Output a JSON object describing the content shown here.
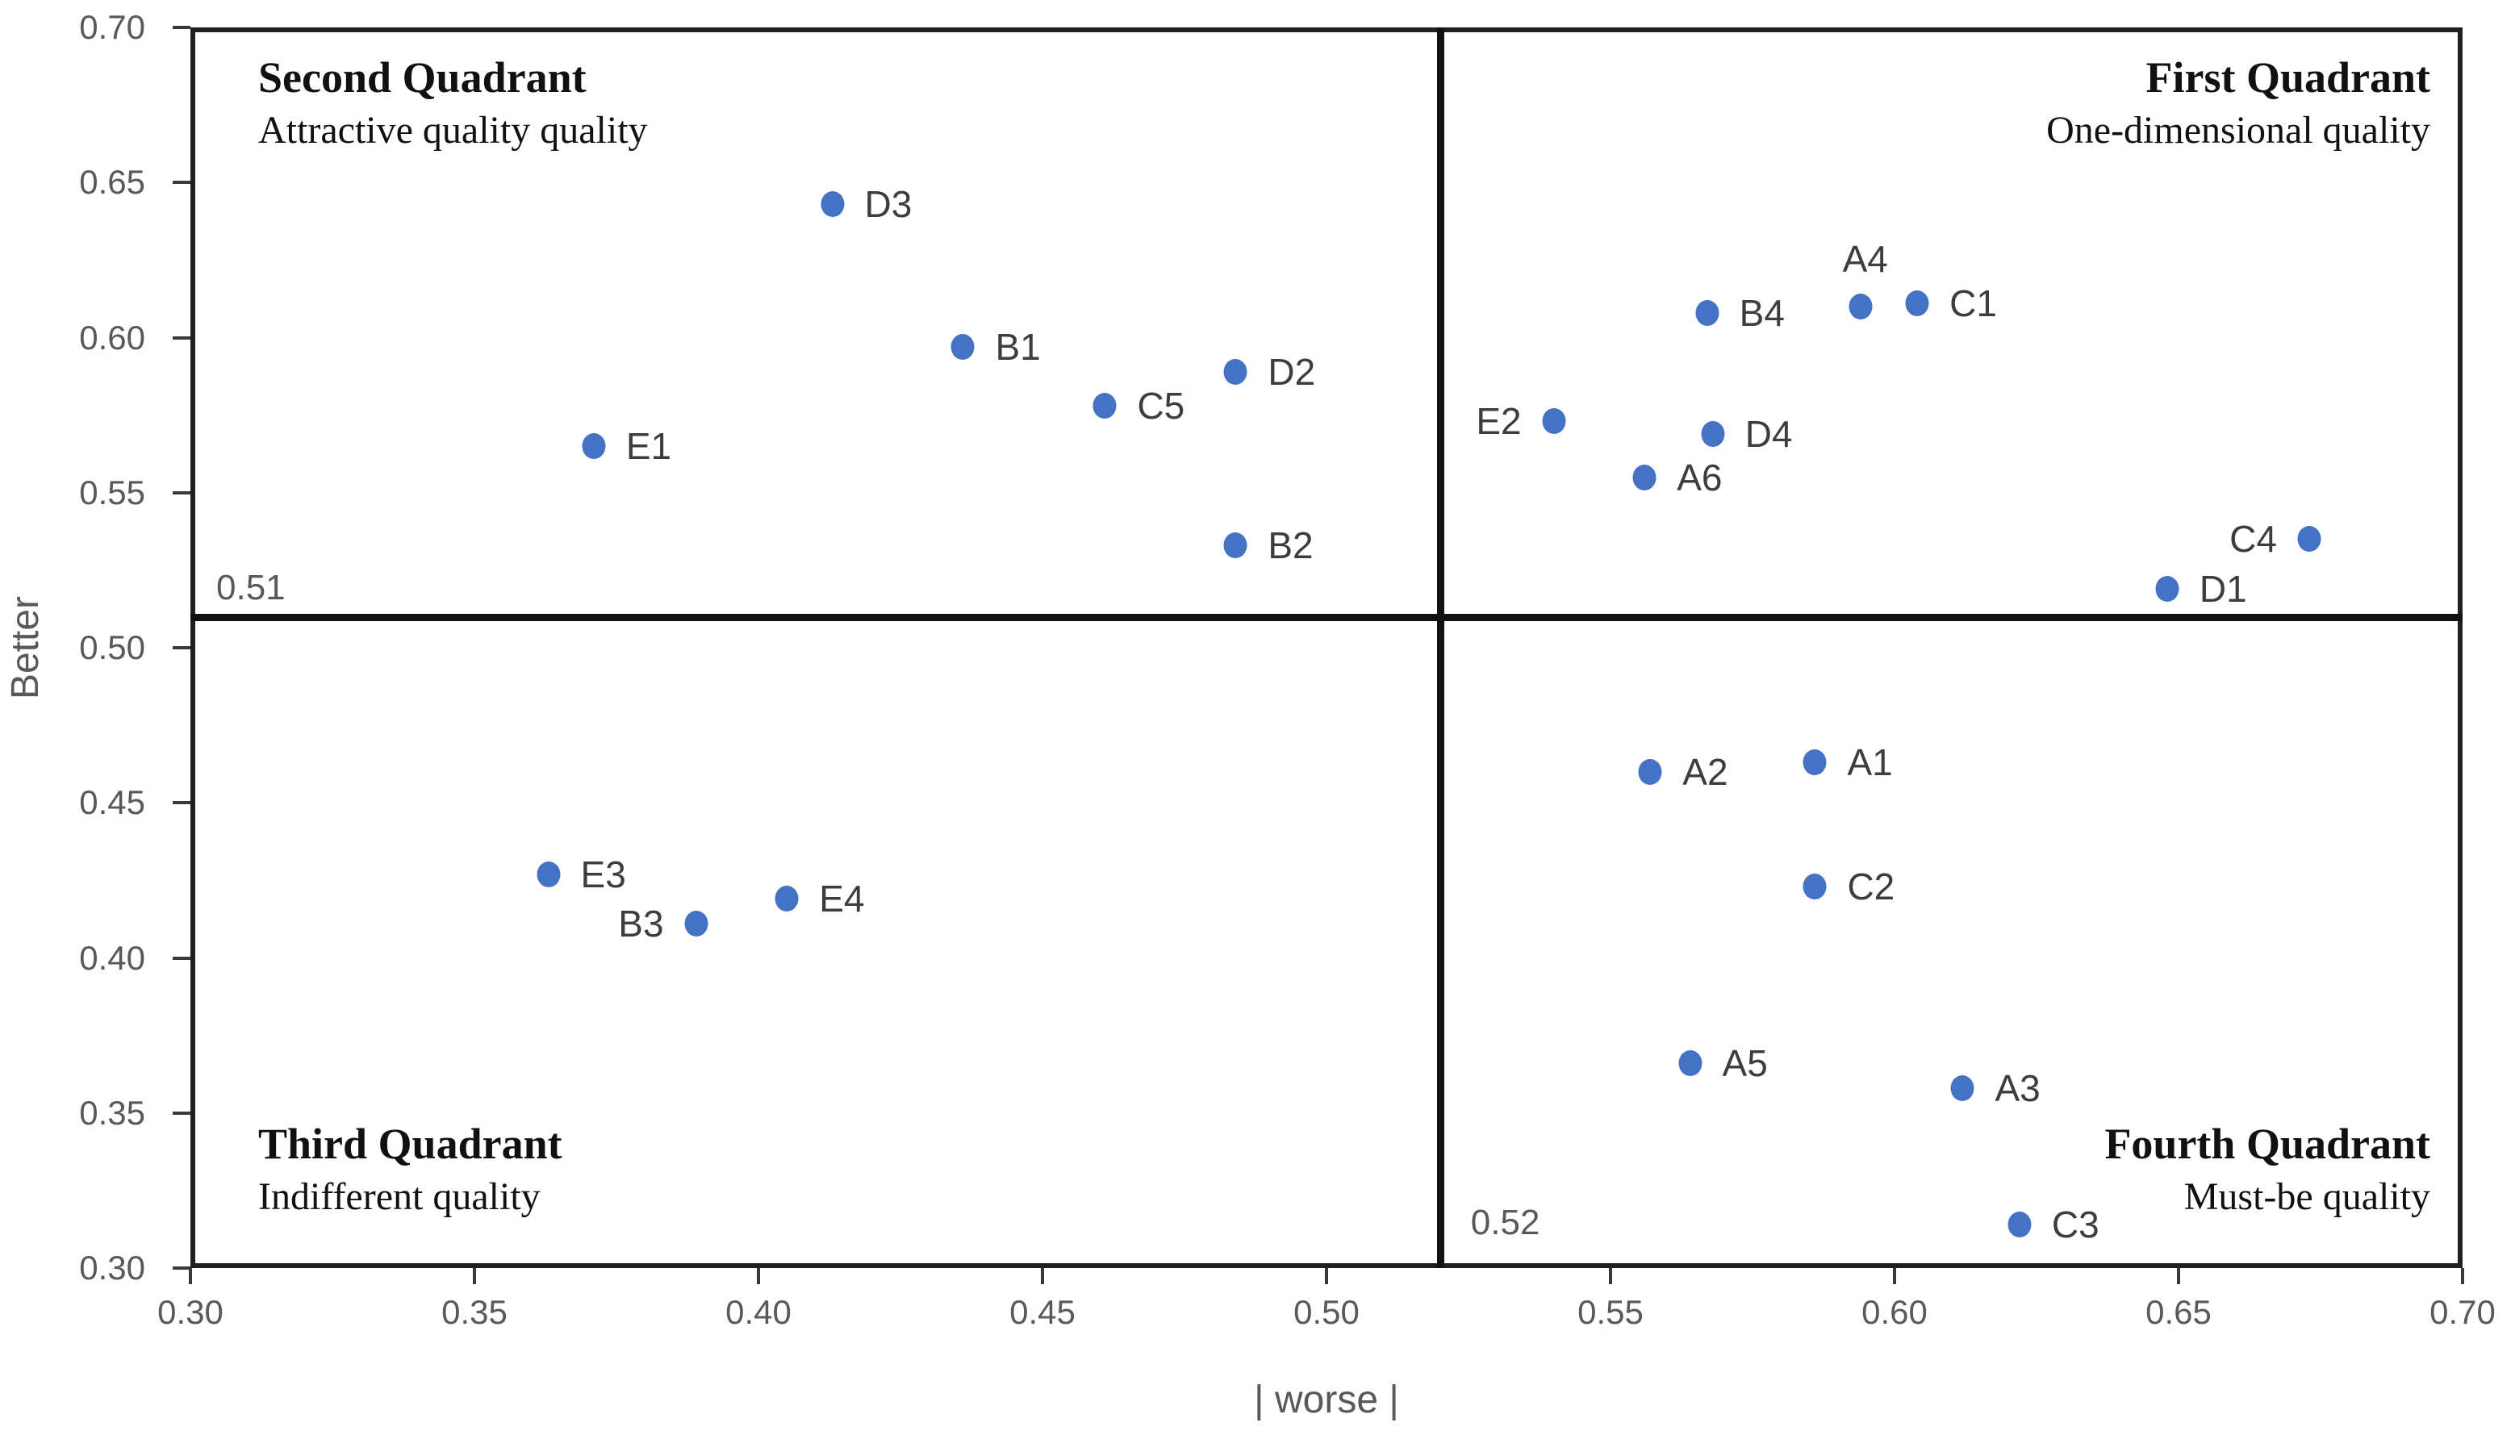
{
  "colors": {
    "dot": "#4472C4",
    "axis_text": "#595959",
    "quad_text": "#111111",
    "point_label_text": "#3d3d3d",
    "border": "#1f1f1f"
  },
  "axes": {
    "x_title": "| worse |",
    "y_title": "Better",
    "x_tick_labels": [
      "0.30",
      "0.35",
      "0.40",
      "0.45",
      "0.50",
      "0.55",
      "0.60",
      "0.65",
      "0.70"
    ],
    "y_tick_labels": [
      "0.30",
      "0.35",
      "0.40",
      "0.45",
      "0.50",
      "0.55",
      "0.60",
      "0.65",
      "0.70"
    ]
  },
  "quadrants": {
    "second": {
      "title": "Second Quadrant",
      "subtitle": "Attractive quality quality"
    },
    "first": {
      "title": "First Quadrant",
      "subtitle": "One-dimensional quality"
    },
    "third": {
      "title": "Third Quadrant",
      "subtitle": "Indifferent quality"
    },
    "fourth": {
      "title": "Fourth Quadrant",
      "subtitle": "Must-be quality"
    }
  },
  "crosshair": {
    "x_value": 0.52,
    "y_value": 0.51,
    "x_label": "0.52",
    "y_label": "0.51"
  },
  "chart_data": {
    "type": "scatter",
    "title": "",
    "xlabel": "| worse |",
    "ylabel": "Better",
    "xlim": [
      0.3,
      0.7
    ],
    "ylim": [
      0.3,
      0.7
    ],
    "x_ticks": [
      0.3,
      0.35,
      0.4,
      0.45,
      0.5,
      0.55,
      0.6,
      0.65,
      0.7
    ],
    "y_ticks": [
      0.3,
      0.35,
      0.4,
      0.45,
      0.5,
      0.55,
      0.6,
      0.65,
      0.7
    ],
    "grid": false,
    "legend": false,
    "quadrant_divider_x": 0.52,
    "quadrant_divider_y": 0.51,
    "points": [
      {
        "label": "D3",
        "x": 0.413,
        "y": 0.643,
        "side": "right"
      },
      {
        "label": "B1",
        "x": 0.436,
        "y": 0.597,
        "side": "right"
      },
      {
        "label": "D2",
        "x": 0.484,
        "y": 0.589,
        "side": "right"
      },
      {
        "label": "C5",
        "x": 0.461,
        "y": 0.578,
        "side": "right"
      },
      {
        "label": "E1",
        "x": 0.371,
        "y": 0.565,
        "side": "right"
      },
      {
        "label": "B2",
        "x": 0.484,
        "y": 0.533,
        "side": "right"
      },
      {
        "label": "E2",
        "x": 0.54,
        "y": 0.573,
        "side": "left"
      },
      {
        "label": "B4",
        "x": 0.567,
        "y": 0.608,
        "side": "right"
      },
      {
        "label": "A4",
        "x": 0.594,
        "y": 0.61,
        "side": "above"
      },
      {
        "label": "C1",
        "x": 0.604,
        "y": 0.611,
        "side": "right"
      },
      {
        "label": "D4",
        "x": 0.568,
        "y": 0.569,
        "side": "right"
      },
      {
        "label": "A6",
        "x": 0.556,
        "y": 0.555,
        "side": "right"
      },
      {
        "label": "C4",
        "x": 0.673,
        "y": 0.535,
        "side": "left"
      },
      {
        "label": "D1",
        "x": 0.648,
        "y": 0.519,
        "side": "right"
      },
      {
        "label": "E3",
        "x": 0.363,
        "y": 0.427,
        "side": "right"
      },
      {
        "label": "B3",
        "x": 0.389,
        "y": 0.411,
        "side": "left"
      },
      {
        "label": "E4",
        "x": 0.405,
        "y": 0.419,
        "side": "right"
      },
      {
        "label": "A2",
        "x": 0.557,
        "y": 0.46,
        "side": "right"
      },
      {
        "label": "A1",
        "x": 0.586,
        "y": 0.463,
        "side": "right"
      },
      {
        "label": "C2",
        "x": 0.586,
        "y": 0.423,
        "side": "right"
      },
      {
        "label": "A5",
        "x": 0.564,
        "y": 0.366,
        "side": "right"
      },
      {
        "label": "A3",
        "x": 0.612,
        "y": 0.358,
        "side": "right"
      },
      {
        "label": "C3",
        "x": 0.622,
        "y": 0.314,
        "side": "right"
      }
    ]
  }
}
